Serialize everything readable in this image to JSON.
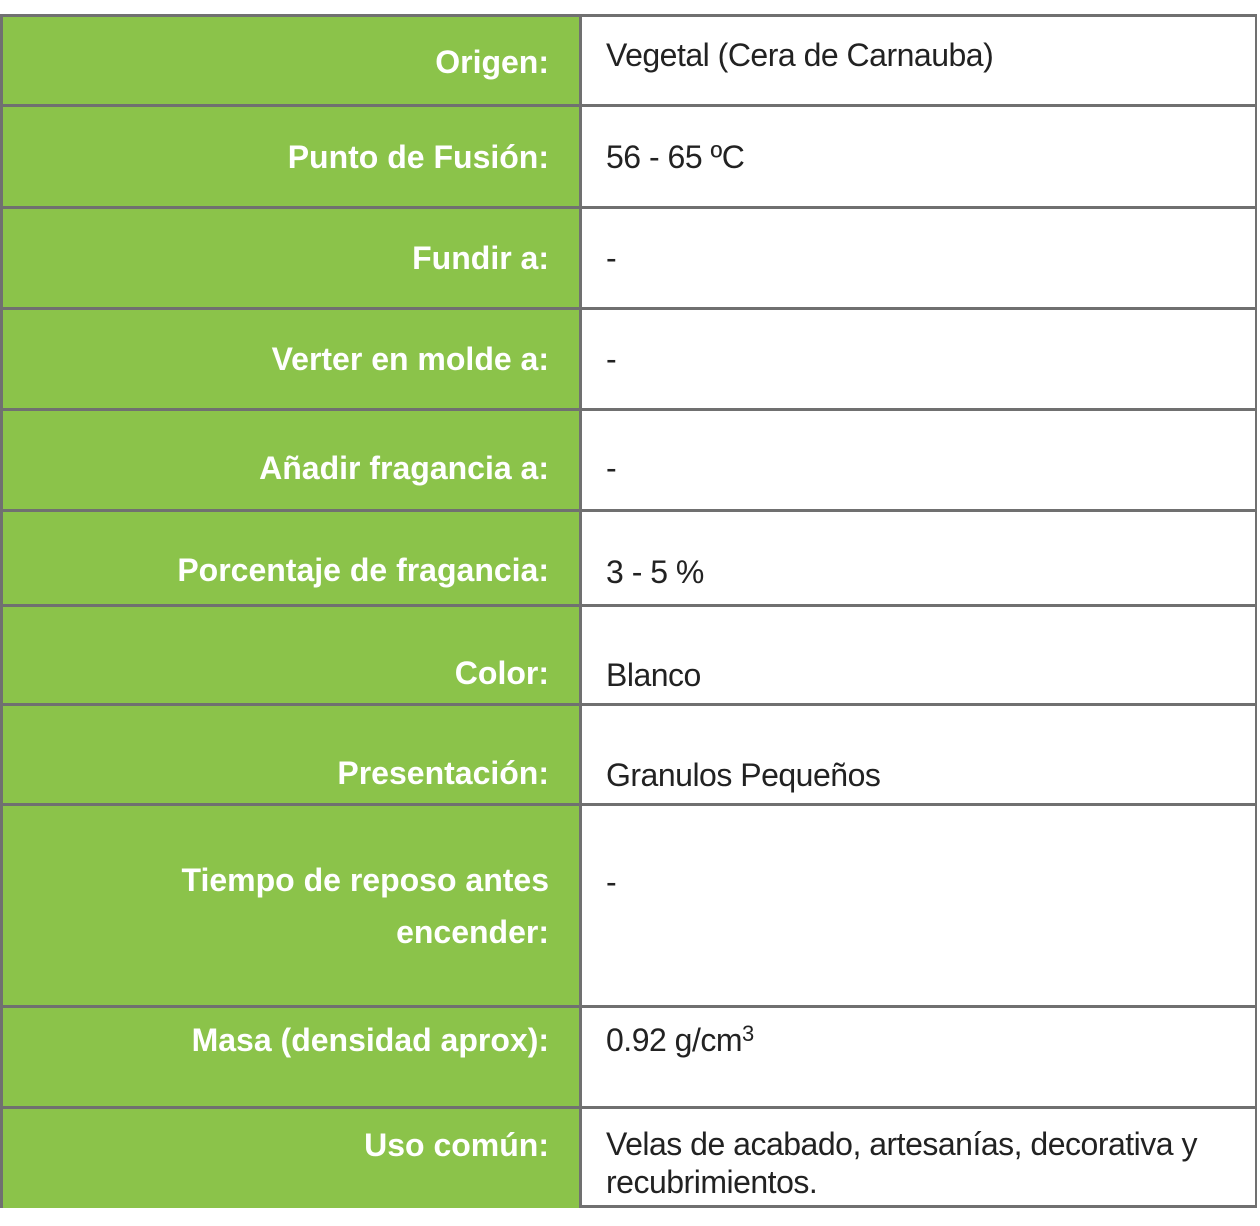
{
  "theme": {
    "label_bg": "#8bc34a",
    "border": "#707070"
  },
  "rows": [
    {
      "label": "Origen:",
      "value": "Vegetal (Cera de Carnauba)"
    },
    {
      "label": "Punto de Fusión:",
      "value": "56 - 65 ºC"
    },
    {
      "label": "Fundir a:",
      "value": "-"
    },
    {
      "label": "Verter en molde a:",
      "value": "-"
    },
    {
      "label": "Añadir fragancia a:",
      "value": "-"
    },
    {
      "label": "Porcentaje de fragancia:",
      "value": "3 - 5 %"
    },
    {
      "label": "Color:",
      "value": "Blanco"
    },
    {
      "label": "Presentación:",
      "value": "Granulos Pequeños"
    },
    {
      "label": "Tiempo  de reposo antes encender:",
      "value": "-"
    },
    {
      "label": "Masa (densidad aprox):",
      "value": "0.92 g/cm",
      "value_sup": "3"
    },
    {
      "label": "Uso común:",
      "value": "Velas de acabado, artesanías, decorativa y recubrimientos."
    }
  ]
}
